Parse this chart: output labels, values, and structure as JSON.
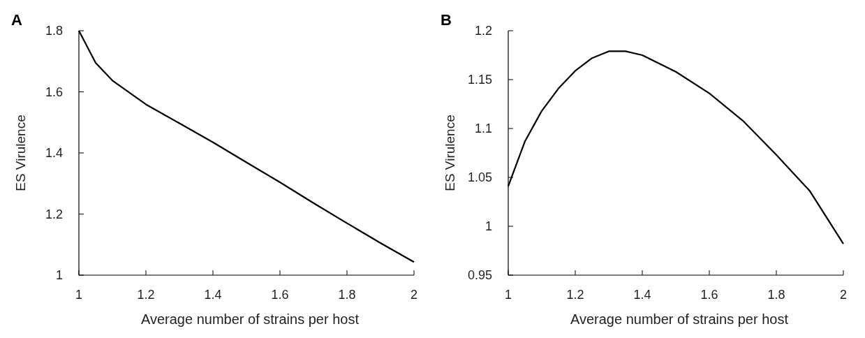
{
  "chart_data": [
    {
      "type": "line",
      "title": "A",
      "xlabel": "Average number of strains per host",
      "ylabel": "ES Virulence",
      "xlim": [
        1,
        2
      ],
      "xticks": [
        1,
        1.2,
        1.4,
        1.6,
        1.8,
        2
      ],
      "ylim": [
        1,
        1.8
      ],
      "yticks": [
        1,
        1.2,
        1.4,
        1.6,
        1.8
      ],
      "grid": false,
      "marker": "none",
      "line_style": "solid",
      "series": [
        {
          "color": "#000000",
          "x": [
            1,
            1.05,
            1.1,
            1.15,
            1.2,
            1.3,
            1.4,
            1.5,
            1.6,
            1.7,
            1.8,
            1.9,
            2
          ],
          "values": [
            1.8,
            1.695,
            1.637,
            1.598,
            1.559,
            1.497,
            1.435,
            1.369,
            1.304,
            1.236,
            1.17,
            1.105,
            1.043
          ]
        }
      ]
    },
    {
      "type": "line",
      "title": "B",
      "xlabel": "Average number of strains per host",
      "ylabel": "ES Virulence",
      "xlim": [
        1,
        2
      ],
      "xticks": [
        1,
        1.2,
        1.4,
        1.6,
        1.8,
        2
      ],
      "ylim": [
        0.95,
        1.2
      ],
      "yticks": [
        0.95,
        1,
        1.05,
        1.1,
        1.15,
        1.2
      ],
      "grid": false,
      "marker": "none",
      "line_style": "solid",
      "series": [
        {
          "color": "#000000",
          "x": [
            1,
            1.05,
            1.1,
            1.15,
            1.2,
            1.25,
            1.3,
            1.35,
            1.4,
            1.5,
            1.6,
            1.7,
            1.8,
            1.9,
            2
          ],
          "values": [
            1.041,
            1.087,
            1.118,
            1.141,
            1.159,
            1.172,
            1.179,
            1.179,
            1.175,
            1.158,
            1.136,
            1.108,
            1.073,
            1.036,
            0.982
          ]
        }
      ]
    }
  ]
}
